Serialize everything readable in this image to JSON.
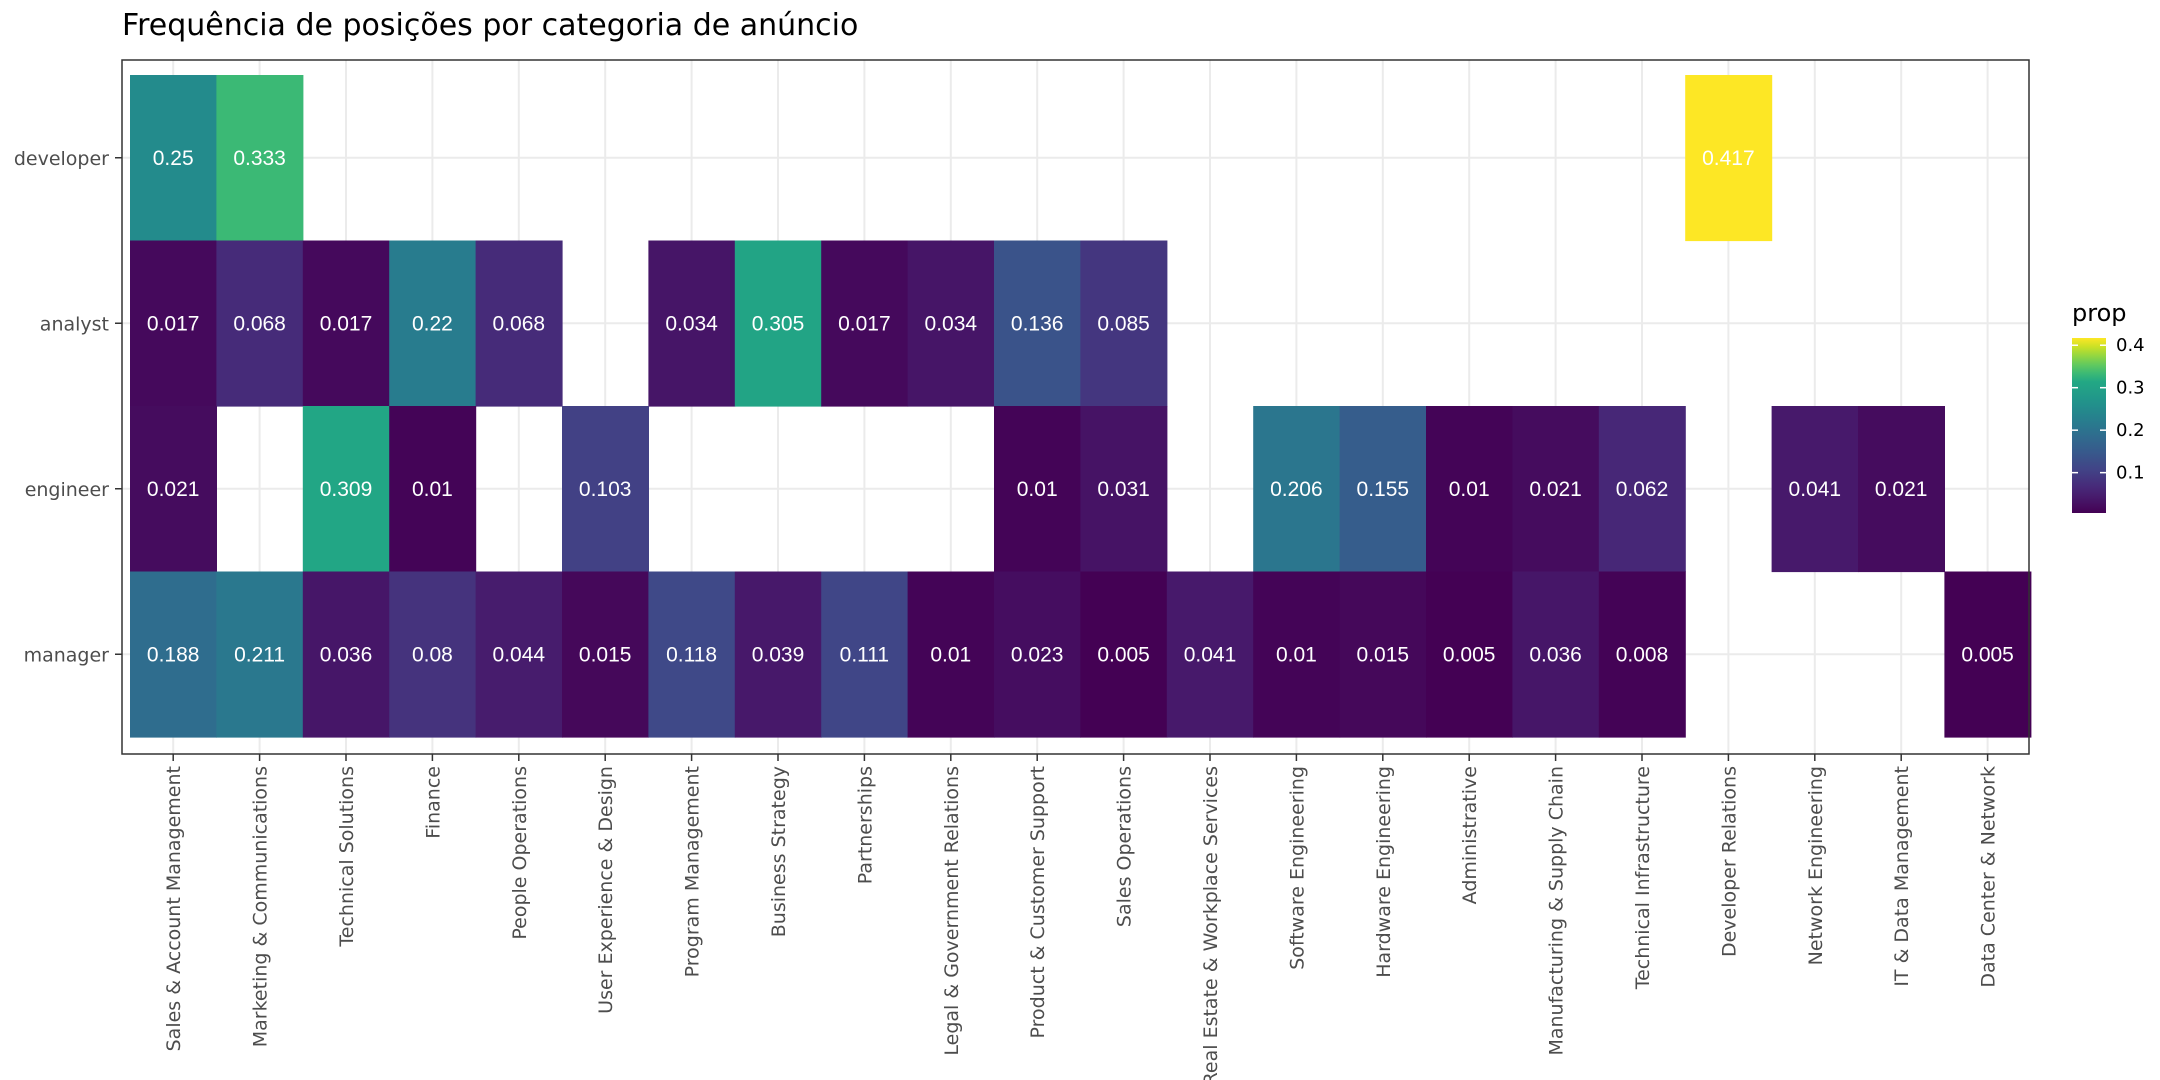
{
  "chart_data": {
    "type": "heatmap",
    "title": "Frequência de posições por categoria de anúncio",
    "xlabel": "",
    "ylabel": "",
    "x_categories": [
      "Sales & Account Management",
      "Marketing & Communications",
      "Technical Solutions",
      "Finance",
      "People Operations",
      "User Experience & Design",
      "Program Management",
      "Business Strategy",
      "Partnerships",
      "Legal & Government Relations",
      "Product & Customer Support",
      "Sales Operations",
      "Real Estate & Workplace Services",
      "Software Engineering",
      "Hardware Engineering",
      "Administrative",
      "Manufacturing & Supply Chain",
      "Technical Infrastructure",
      "Developer Relations",
      "Network Engineering",
      "IT & Data Management",
      "Data Center & Network"
    ],
    "y_categories": [
      "developer",
      "analyst",
      "engineer",
      "manager"
    ],
    "values": [
      [
        0.25,
        0.333,
        null,
        null,
        null,
        null,
        null,
        null,
        null,
        null,
        null,
        null,
        null,
        null,
        null,
        null,
        null,
        null,
        0.417,
        null,
        null,
        null
      ],
      [
        0.017,
        0.068,
        0.017,
        0.22,
        0.068,
        null,
        0.034,
        0.305,
        0.017,
        0.034,
        0.136,
        0.085,
        null,
        null,
        null,
        null,
        null,
        null,
        null,
        null,
        null,
        null
      ],
      [
        0.021,
        null,
        0.309,
        0.01,
        null,
        0.103,
        null,
        null,
        null,
        null,
        0.01,
        0.031,
        null,
        0.206,
        0.155,
        0.01,
        0.021,
        0.062,
        null,
        0.041,
        0.021,
        null
      ],
      [
        0.188,
        0.211,
        0.036,
        0.08,
        0.044,
        0.015,
        0.118,
        0.039,
        0.111,
        0.01,
        0.023,
        0.005,
        0.041,
        0.01,
        0.015,
        0.005,
        0.036,
        0.008,
        null,
        null,
        null,
        0.005
      ]
    ],
    "legend": {
      "title": "prop",
      "ticks": [
        "0.1",
        "0.2",
        "0.3",
        "0.4"
      ],
      "tick_values": [
        0.1,
        0.2,
        0.3,
        0.4
      ],
      "position": "right"
    },
    "color_scale": {
      "name": "viridis",
      "min": 0.005,
      "max": 0.417
    },
    "grid": true
  }
}
